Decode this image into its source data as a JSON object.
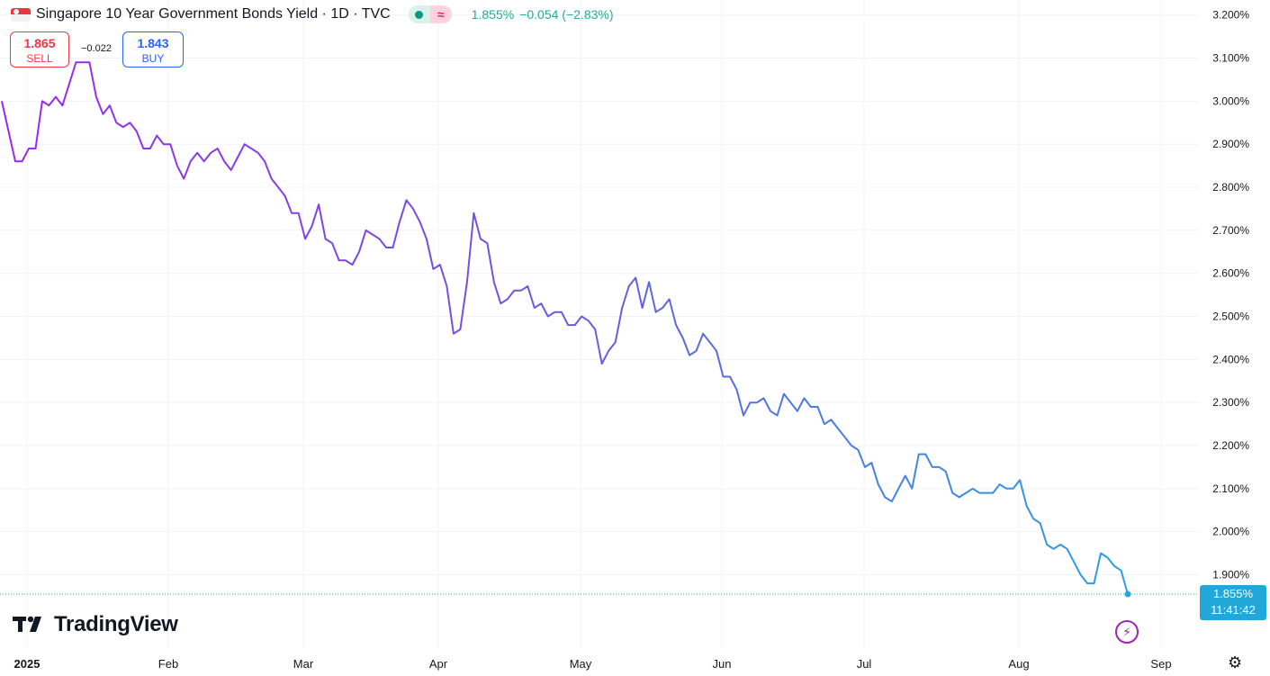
{
  "header": {
    "title": "Singapore 10 Year Government Bonds Yield · 1D · TVC",
    "last_value": "1.855%",
    "change": "−0.054 (−2.83%)",
    "delay_glyph": "≈"
  },
  "trade": {
    "sell_price": "1.865",
    "sell_label": "SELL",
    "spread": "−0.022",
    "buy_price": "1.843",
    "buy_label": "BUY"
  },
  "price_label": {
    "value": "1.855%",
    "time": "11:41:42"
  },
  "branding": {
    "name": "TradingView"
  },
  "icons": {
    "flag": "singapore-flag-icon",
    "bolt": "lightning-icon",
    "settings": "gear-icon",
    "logo": "tradingview-logo-icon"
  },
  "colors": {
    "line_start": "#9c27ef",
    "line_mid": "#6a5ae0",
    "line_end": "#2aa0e6",
    "grid": "#f0f3fa",
    "last_price": "#22a8d8"
  },
  "chart_data": {
    "type": "line",
    "title": "Singapore 10 Year Government Bonds Yield",
    "ylim": [
      1.8,
      3.2
    ],
    "y_ticks": [
      1.9,
      2.0,
      2.1,
      2.2,
      2.3,
      2.4,
      2.5,
      2.6,
      2.7,
      2.8,
      2.9,
      3.0,
      3.1,
      3.2
    ],
    "y_tick_labels": [
      "1.900%",
      "2.000%",
      "2.100%",
      "2.200%",
      "2.300%",
      "2.400%",
      "2.500%",
      "2.600%",
      "2.700%",
      "2.800%",
      "2.900%",
      "3.000%",
      "3.100%",
      "3.200%"
    ],
    "x_labels": [
      "2025",
      "Feb",
      "Mar",
      "Apr",
      "May",
      "Jun",
      "Jul",
      "Aug",
      "Sep"
    ],
    "grid": true,
    "last_value": 1.855,
    "series": [
      {
        "values": [
          3.0,
          2.93,
          2.86,
          2.86,
          2.89,
          2.89,
          3.0,
          2.99,
          3.01,
          2.99,
          3.04,
          3.09,
          3.09,
          3.09,
          3.01,
          2.97,
          2.99,
          2.95,
          2.94,
          2.95,
          2.93,
          2.89,
          2.89,
          2.92,
          2.9,
          2.9,
          2.85,
          2.82,
          2.86,
          2.88,
          2.86,
          2.88,
          2.89,
          2.86,
          2.84,
          2.87,
          2.9,
          2.89,
          2.88,
          2.86,
          2.82,
          2.8,
          2.78,
          2.74,
          2.74,
          2.68,
          2.71,
          2.76,
          2.68,
          2.67,
          2.63,
          2.63,
          2.62,
          2.65,
          2.7,
          2.69,
          2.68,
          2.66,
          2.66,
          2.72,
          2.77,
          2.75,
          2.72,
          2.68,
          2.61,
          2.62,
          2.57,
          2.46,
          2.47,
          2.58,
          2.74,
          2.68,
          2.67,
          2.58,
          2.53,
          2.54,
          2.56,
          2.56,
          2.57,
          2.52,
          2.53,
          2.5,
          2.51,
          2.51,
          2.48,
          2.48,
          2.5,
          2.49,
          2.47,
          2.39,
          2.42,
          2.44,
          2.52,
          2.57,
          2.59,
          2.52,
          2.58,
          2.51,
          2.52,
          2.54,
          2.48,
          2.45,
          2.41,
          2.42,
          2.46,
          2.44,
          2.42,
          2.36,
          2.36,
          2.33,
          2.27,
          2.3,
          2.3,
          2.31,
          2.28,
          2.27,
          2.32,
          2.3,
          2.28,
          2.31,
          2.29,
          2.29,
          2.25,
          2.26,
          2.24,
          2.22,
          2.2,
          2.19,
          2.15,
          2.16,
          2.11,
          2.08,
          2.07,
          2.1,
          2.13,
          2.1,
          2.18,
          2.18,
          2.15,
          2.15,
          2.14,
          2.09,
          2.08,
          2.09,
          2.1,
          2.09,
          2.09,
          2.09,
          2.11,
          2.1,
          2.1,
          2.12,
          2.06,
          2.03,
          2.02,
          1.97,
          1.96,
          1.97,
          1.96,
          1.93,
          1.9,
          1.88,
          1.88,
          1.95,
          1.94,
          1.92,
          1.91,
          1.855
        ]
      }
    ]
  }
}
